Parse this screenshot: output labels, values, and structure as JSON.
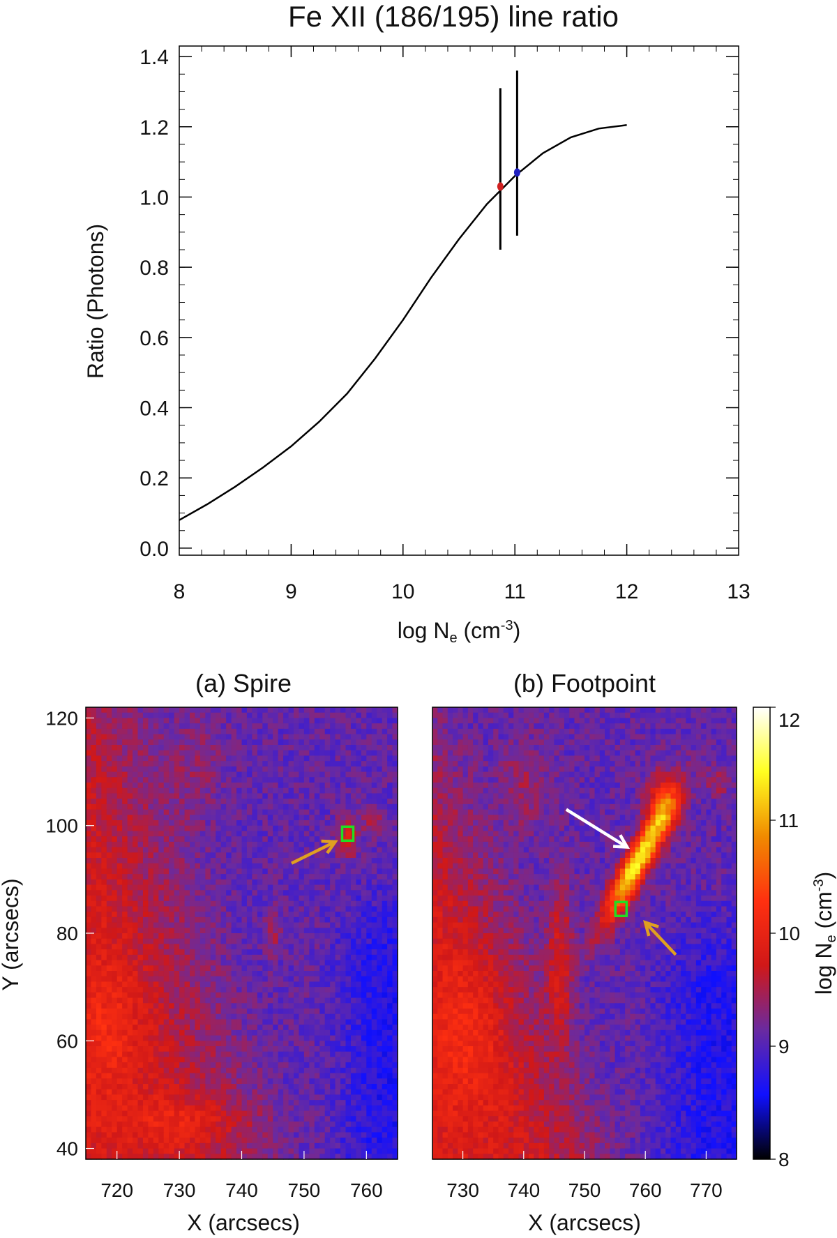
{
  "chart_data": [
    {
      "type": "line",
      "title": "Fe XII (186/195) line ratio",
      "xlabel": "log N",
      "xlabel_sub": "e",
      "xlabel_unit_prefix": " (cm",
      "xlabel_unit_sup": "-3",
      "xlabel_unit_suffix": ")",
      "ylabel": "Ratio (Photons)",
      "xlim": [
        8,
        13
      ],
      "ylim": [
        -0.02,
        1.43
      ],
      "xticks": [
        "8",
        "9",
        "10",
        "11",
        "12",
        "13"
      ],
      "yticks": [
        "0.0",
        "0.2",
        "0.4",
        "0.6",
        "0.8",
        "1.0",
        "1.2",
        "1.4"
      ],
      "curve": {
        "x": [
          8.0,
          8.25,
          8.5,
          8.75,
          9.0,
          9.25,
          9.5,
          9.75,
          10.0,
          10.25,
          10.5,
          10.75,
          11.0,
          11.25,
          11.5,
          11.75,
          12.0
        ],
        "y": [
          0.08,
          0.125,
          0.175,
          0.23,
          0.29,
          0.36,
          0.44,
          0.54,
          0.65,
          0.77,
          0.88,
          0.98,
          1.06,
          1.125,
          1.17,
          1.195,
          1.205
        ],
        "color": "#000000"
      },
      "points": [
        {
          "x": 10.87,
          "y": 1.03,
          "yerr_low": 0.85,
          "yerr_high": 1.31,
          "color": "#d02020"
        },
        {
          "x": 11.02,
          "y": 1.07,
          "yerr_low": 0.89,
          "yerr_high": 1.36,
          "color": "#2020c0"
        }
      ]
    },
    {
      "type": "heatmap",
      "title": "(a) Spire",
      "xlabel": "X (arcsecs)",
      "ylabel": "Y (arcsecs)",
      "xlim": [
        715,
        765
      ],
      "ylim": [
        38,
        122
      ],
      "xticks": [
        "720",
        "730",
        "740",
        "750",
        "760"
      ],
      "yticks": [
        "40",
        "60",
        "80",
        "100",
        "120"
      ],
      "box": {
        "x": 757,
        "y": 98.5,
        "color": "#22dd22"
      },
      "arrow": {
        "color": "#e0a020",
        "from": [
          748,
          93
        ],
        "to": [
          755,
          97
        ]
      }
    },
    {
      "type": "heatmap",
      "title": "(b) Footpoint",
      "xlabel": "X (arcsecs)",
      "ylabel": "",
      "xlim": [
        725,
        775
      ],
      "ylim": [
        38,
        122
      ],
      "xticks": [
        "730",
        "740",
        "750",
        "760",
        "770"
      ],
      "box": {
        "x": 756,
        "y": 84.5,
        "color": "#22dd22"
      },
      "arrows": [
        {
          "color": "#ffffff",
          "from": [
            747,
            103
          ],
          "to": [
            757,
            96
          ]
        },
        {
          "color": "#e0a020",
          "from": [
            765,
            76
          ],
          "to": [
            760,
            82
          ]
        }
      ]
    },
    {
      "type": "colorbar",
      "label": "log N",
      "label_sub": "e",
      "label_unit_prefix": " (cm",
      "label_unit_sup": "-3",
      "label_unit_suffix": ")",
      "range": [
        8,
        12
      ],
      "ticks": [
        "8",
        "9",
        "10",
        "11",
        "12"
      ],
      "colors": [
        "#000000",
        "#1010ff",
        "#6a2aa0",
        "#d01818",
        "#ff3010",
        "#f08a00",
        "#ffff20",
        "#ffffff"
      ]
    }
  ]
}
